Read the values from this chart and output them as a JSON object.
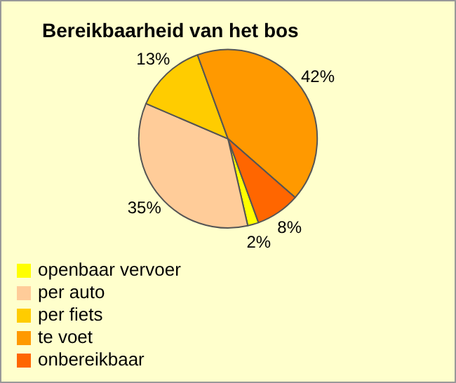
{
  "chart_data": {
    "type": "pie",
    "title": "Bereikbaarheid van het bos",
    "categories": [
      "openbaar vervoer",
      "per auto",
      "per fiets",
      "te voet",
      "onbereikbaar"
    ],
    "values": [
      2,
      35,
      13,
      42,
      8
    ],
    "value_labels": [
      "2%",
      "35%",
      "13%",
      "42%",
      "8%"
    ],
    "colors": [
      "#ffff00",
      "#ffcc99",
      "#ffcc00",
      "#ff9900",
      "#ff6600"
    ],
    "legend": "bottom left"
  }
}
